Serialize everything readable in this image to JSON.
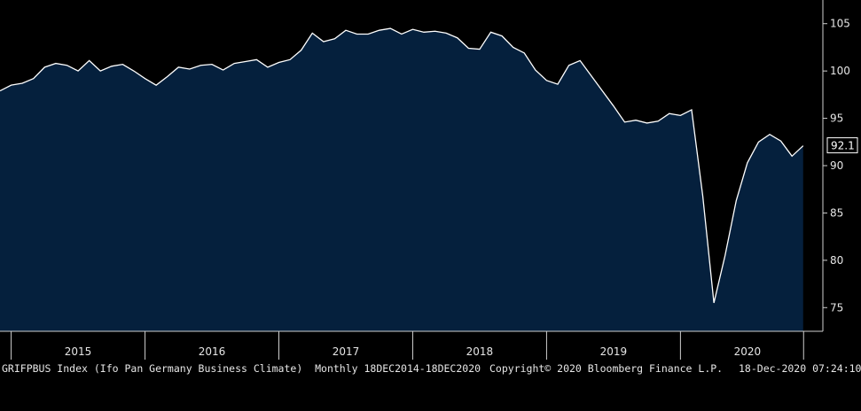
{
  "chart_data": {
    "type": "area",
    "title": "",
    "xlabel": "",
    "ylabel": "",
    "ylim": [
      72.5,
      107.5
    ],
    "y_ticks": [
      75,
      80,
      85,
      90,
      95,
      100,
      105
    ],
    "x_year_labels": [
      "2015",
      "2016",
      "2017",
      "2018",
      "2019",
      "2020"
    ],
    "x_start": "2014-12",
    "last_value_label": "92.1",
    "colors": {
      "fill": "#05203d",
      "line": "#ffffff",
      "background": "#000000",
      "text": "#e6e6e6"
    },
    "grid": false,
    "series": [
      {
        "x": [
          "2014-12",
          "2015-01",
          "2015-02",
          "2015-03",
          "2015-04",
          "2015-05",
          "2015-06",
          "2015-07",
          "2015-08",
          "2015-09",
          "2015-10",
          "2015-11",
          "2015-12",
          "2016-01",
          "2016-02",
          "2016-03",
          "2016-04",
          "2016-05",
          "2016-06",
          "2016-07",
          "2016-08",
          "2016-09",
          "2016-10",
          "2016-11",
          "2016-12",
          "2017-01",
          "2017-02",
          "2017-03",
          "2017-04",
          "2017-05",
          "2017-06",
          "2017-07",
          "2017-08",
          "2017-09",
          "2017-10",
          "2017-11",
          "2017-12",
          "2018-01",
          "2018-02",
          "2018-03",
          "2018-04",
          "2018-05",
          "2018-06",
          "2018-07",
          "2018-08",
          "2018-09",
          "2018-10",
          "2018-11",
          "2018-12",
          "2019-01",
          "2019-02",
          "2019-03",
          "2019-04",
          "2019-05",
          "2019-06",
          "2019-07",
          "2019-08",
          "2019-09",
          "2019-10",
          "2019-11",
          "2019-12",
          "2020-01",
          "2020-02",
          "2020-03",
          "2020-04",
          "2020-05",
          "2020-06",
          "2020-07",
          "2020-08",
          "2020-09",
          "2020-10",
          "2020-11",
          "2020-12"
        ],
        "values": [
          97.9,
          98.5,
          98.7,
          99.2,
          100.4,
          100.8,
          100.6,
          100.0,
          101.1,
          100.0,
          100.5,
          100.7,
          100.0,
          99.2,
          98.5,
          99.4,
          100.4,
          100.2,
          100.6,
          100.7,
          100.1,
          100.8,
          101.0,
          101.2,
          100.4,
          100.9,
          101.2,
          102.2,
          104.0,
          103.1,
          103.4,
          104.3,
          103.9,
          103.9,
          104.3,
          104.5,
          103.9,
          104.4,
          104.1,
          104.2,
          104.0,
          103.5,
          102.4,
          102.3,
          104.1,
          103.7,
          102.5,
          101.9,
          100.1,
          99.0,
          98.6,
          100.6,
          101.1,
          99.5,
          97.9,
          96.3,
          94.6,
          94.8,
          94.5,
          94.7,
          95.5,
          95.3,
          95.9,
          86.8,
          75.5,
          80.5,
          86.3,
          90.3,
          92.5,
          93.3,
          92.6,
          91.0,
          92.1
        ]
      }
    ]
  },
  "footer": {
    "left": "GRIFPBUS Index (Ifo Pan Germany Business Climate)  Monthly 18DEC2014-18DEC2020",
    "center": "Copyright© 2020 Bloomberg Finance L.P.",
    "right": "18-Dec-2020 07:24:10"
  }
}
